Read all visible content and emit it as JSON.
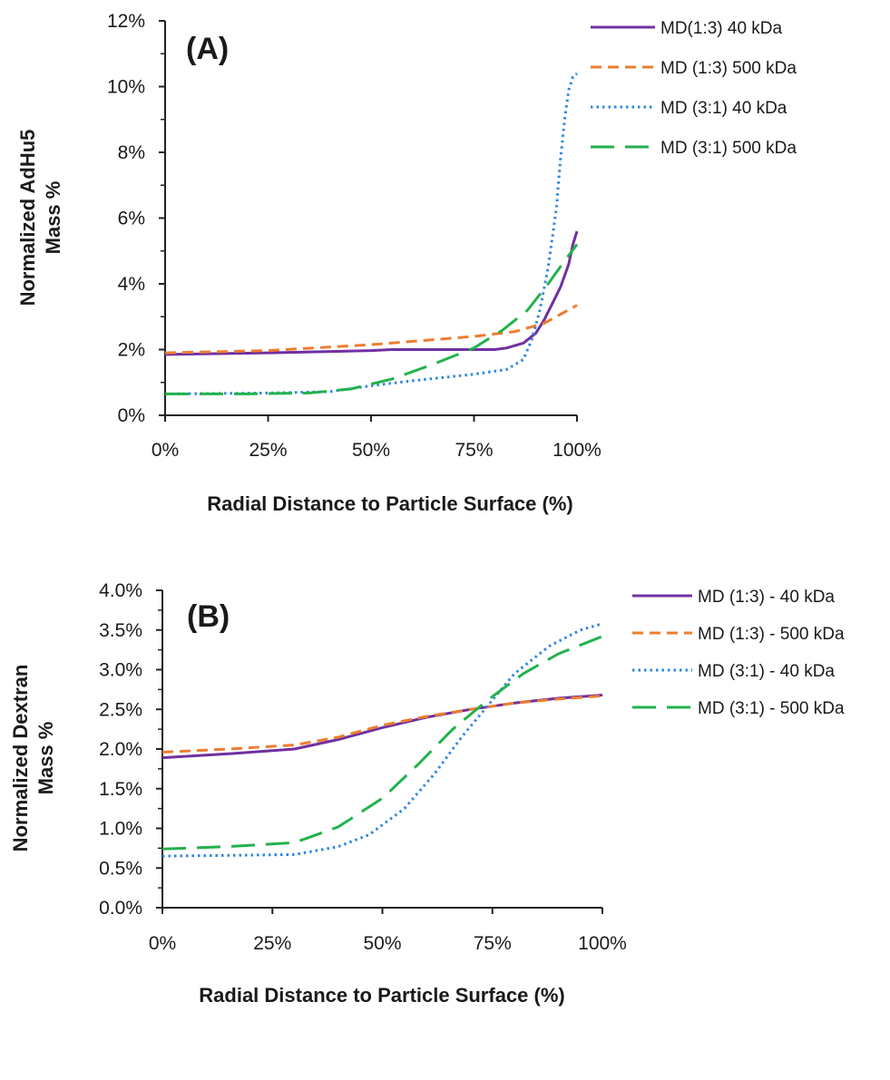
{
  "chart_data": [
    {
      "type": "line",
      "panel_label": "(A)",
      "xlabel": "Radial Distance to Particle Surface (%)",
      "ylabel_lines": [
        "Normalized AdHu5",
        "Mass %"
      ],
      "xlim": [
        0,
        100
      ],
      "ylim": [
        0,
        12
      ],
      "x_ticks": [
        0,
        25,
        50,
        75,
        100
      ],
      "x_tick_labels": [
        "0%",
        "25%",
        "50%",
        "75%",
        "100%"
      ],
      "y_ticks": [
        0,
        2,
        4,
        6,
        8,
        10,
        12
      ],
      "y_tick_labels": [
        "0%",
        "2%",
        "4%",
        "6%",
        "8%",
        "10%",
        "12%"
      ],
      "grid": false,
      "legend_position": "top-right",
      "series": [
        {
          "name": "MD(1:3) 40 kDa",
          "color": "#7030a0",
          "style": "solid",
          "points": [
            [
              0,
              1.85
            ],
            [
              25,
              1.9
            ],
            [
              50,
              1.97
            ],
            [
              55,
              2.0
            ],
            [
              80,
              2.0
            ],
            [
              83,
              2.05
            ],
            [
              87,
              2.2
            ],
            [
              90,
              2.5
            ],
            [
              92,
              2.9
            ],
            [
              94,
              3.4
            ],
            [
              96,
              3.9
            ],
            [
              98,
              4.6
            ],
            [
              99,
              5.2
            ],
            [
              100,
              5.6
            ]
          ]
        },
        {
          "name": "MD (1:3) 500 kDa",
          "color": "#ed7d31",
          "style": "dashed",
          "points": [
            [
              0,
              1.9
            ],
            [
              25,
              1.97
            ],
            [
              50,
              2.15
            ],
            [
              75,
              2.4
            ],
            [
              85,
              2.55
            ],
            [
              92,
              2.8
            ],
            [
              100,
              3.35
            ]
          ]
        },
        {
          "name": "MD (3:1) 40 kDa",
          "color": "#2e86de",
          "style": "dotted",
          "points": [
            [
              0,
              0.65
            ],
            [
              25,
              0.68
            ],
            [
              40,
              0.72
            ],
            [
              50,
              0.9
            ],
            [
              60,
              1.05
            ],
            [
              75,
              1.25
            ],
            [
              83,
              1.4
            ],
            [
              87,
              1.7
            ],
            [
              89,
              2.3
            ],
            [
              91,
              3.2
            ],
            [
              93,
              4.5
            ],
            [
              95,
              6.3
            ],
            [
              96,
              7.8
            ],
            [
              97,
              9.0
            ],
            [
              98,
              9.9
            ],
            [
              99,
              10.3
            ],
            [
              100,
              10.4
            ]
          ]
        },
        {
          "name": "MD (3:1) 500 kDa",
          "color": "#22b24c",
          "style": "longdash",
          "points": [
            [
              0,
              0.65
            ],
            [
              20,
              0.65
            ],
            [
              35,
              0.68
            ],
            [
              45,
              0.8
            ],
            [
              55,
              1.1
            ],
            [
              65,
              1.55
            ],
            [
              75,
              2.05
            ],
            [
              82,
              2.6
            ],
            [
              88,
              3.2
            ],
            [
              93,
              4.0
            ],
            [
              97,
              4.7
            ],
            [
              100,
              5.2
            ]
          ]
        }
      ]
    },
    {
      "type": "line",
      "panel_label": "(B)",
      "xlabel": "Radial Distance to Particle Surface (%)",
      "ylabel_lines": [
        "Normalized Dextran",
        "Mass %"
      ],
      "xlim": [
        0,
        100
      ],
      "ylim": [
        0,
        4
      ],
      "x_ticks": [
        0,
        25,
        50,
        75,
        100
      ],
      "x_tick_labels": [
        "0%",
        "25%",
        "50%",
        "75%",
        "100%"
      ],
      "y_ticks": [
        0,
        0.5,
        1,
        1.5,
        2,
        2.5,
        3,
        3.5,
        4
      ],
      "y_tick_labels": [
        "0.0%",
        "0.5%",
        "1.0%",
        "1.5%",
        "2.0%",
        "2.5%",
        "3.0%",
        "3.5%",
        "4.0%"
      ],
      "grid": false,
      "legend_position": "right",
      "series": [
        {
          "name": "MD (1:3) - 40 kDa",
          "color": "#7030a0",
          "style": "solid",
          "points": [
            [
              0,
              1.89
            ],
            [
              15,
              1.94
            ],
            [
              30,
              2.0
            ],
            [
              40,
              2.12
            ],
            [
              50,
              2.27
            ],
            [
              60,
              2.4
            ],
            [
              70,
              2.5
            ],
            [
              80,
              2.58
            ],
            [
              90,
              2.64
            ],
            [
              100,
              2.68
            ]
          ]
        },
        {
          "name": "MD (1:3) - 500 kDa",
          "color": "#ed7d31",
          "style": "dashed",
          "points": [
            [
              0,
              1.96
            ],
            [
              15,
              2.0
            ],
            [
              30,
              2.05
            ],
            [
              40,
              2.15
            ],
            [
              50,
              2.3
            ],
            [
              60,
              2.41
            ],
            [
              70,
              2.5
            ],
            [
              80,
              2.58
            ],
            [
              90,
              2.63
            ],
            [
              100,
              2.67
            ]
          ]
        },
        {
          "name": "MD (3:1) - 40 kDa",
          "color": "#2e86de",
          "style": "dotted",
          "points": [
            [
              0,
              0.65
            ],
            [
              15,
              0.66
            ],
            [
              30,
              0.67
            ],
            [
              40,
              0.77
            ],
            [
              47,
              0.92
            ],
            [
              55,
              1.25
            ],
            [
              62,
              1.7
            ],
            [
              68,
              2.15
            ],
            [
              74,
              2.55
            ],
            [
              80,
              2.95
            ],
            [
              88,
              3.3
            ],
            [
              95,
              3.5
            ],
            [
              100,
              3.58
            ]
          ]
        },
        {
          "name": "MD (3:1) - 500 kDa",
          "color": "#22b24c",
          "style": "longdash",
          "points": [
            [
              0,
              0.74
            ],
            [
              15,
              0.77
            ],
            [
              30,
              0.82
            ],
            [
              40,
              1.02
            ],
            [
              50,
              1.38
            ],
            [
              58,
              1.8
            ],
            [
              66,
              2.25
            ],
            [
              74,
              2.62
            ],
            [
              82,
              2.95
            ],
            [
              90,
              3.2
            ],
            [
              100,
              3.42
            ]
          ]
        }
      ]
    }
  ]
}
